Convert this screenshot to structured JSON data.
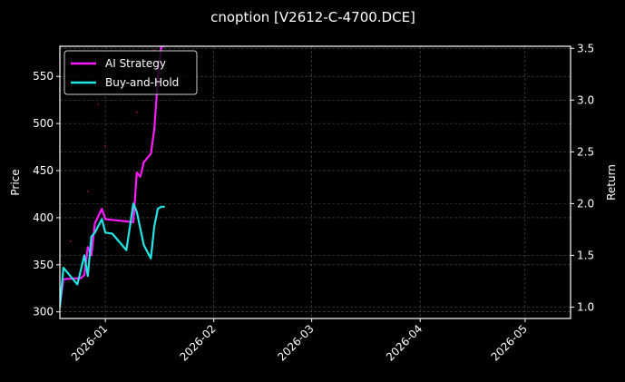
{
  "chart_data": {
    "type": "line",
    "title": "cnoption [V2612-C-4700.DCE]",
    "xlabel": "",
    "ylabel": "Price",
    "y2label": "Return",
    "grid": true,
    "legend_position": "upper left",
    "xlim": [
      "2025-12-19",
      "2026-05-14"
    ],
    "ylim": [
      293,
      582
    ],
    "y2lim": [
      0.89,
      3.52
    ],
    "x_ticks": [
      "2026-01",
      "2026-02",
      "2026-03",
      "2026-04",
      "2026-05"
    ],
    "y_ticks": [
      300,
      350,
      400,
      450,
      500,
      550
    ],
    "y2_ticks": [
      "1.0",
      "1.5",
      "2.0",
      "2.5",
      "3.0",
      "3.5"
    ],
    "series": [
      {
        "name": "AI Strategy",
        "axis": "return",
        "color": "#ff1aff",
        "x": [
          "2025-12-19",
          "2025-12-20",
          "2025-12-25",
          "2025-12-26",
          "2025-12-27",
          "2025-12-28",
          "2025-12-29",
          "2025-12-31",
          "2026-01-01",
          "2026-01-09",
          "2026-01-10",
          "2026-01-11",
          "2026-01-12",
          "2026-01-14",
          "2026-01-15",
          "2026-01-16",
          "2026-01-17",
          "2026-01-18"
        ],
        "values": [
          1.02,
          1.27,
          1.28,
          1.31,
          1.58,
          1.5,
          1.81,
          1.95,
          1.85,
          1.82,
          2.3,
          2.26,
          2.4,
          2.48,
          2.72,
          3.2,
          3.52,
          3.52
        ]
      },
      {
        "name": "Buy-and-Hold",
        "axis": "return",
        "color": "#22e5e5",
        "x": [
          "2025-12-19",
          "2025-12-20",
          "2025-12-24",
          "2025-12-26",
          "2025-12-27",
          "2025-12-28",
          "2025-12-29",
          "2025-12-31",
          "2026-01-01",
          "2026-01-03",
          "2026-01-07",
          "2026-01-09",
          "2026-01-10",
          "2026-01-12",
          "2026-01-14",
          "2026-01-15",
          "2026-01-16",
          "2026-01-17",
          "2026-01-18"
        ],
        "values": [
          1.0,
          1.38,
          1.22,
          1.5,
          1.3,
          1.68,
          1.72,
          1.85,
          1.72,
          1.71,
          1.55,
          2.0,
          1.92,
          1.6,
          1.47,
          1.78,
          1.95,
          1.97,
          1.97
        ]
      }
    ],
    "price_markers": {
      "color": "#8a0a3a",
      "points": [
        {
          "x": "2025-12-22",
          "price": 375
        },
        {
          "x": "2025-12-27",
          "price": 428
        },
        {
          "x": "2025-12-30",
          "price": 520
        },
        {
          "x": "2026-01-01",
          "price": 476
        },
        {
          "x": "2026-01-10",
          "price": 512
        },
        {
          "x": "2026-01-15",
          "price": 578
        }
      ]
    }
  }
}
